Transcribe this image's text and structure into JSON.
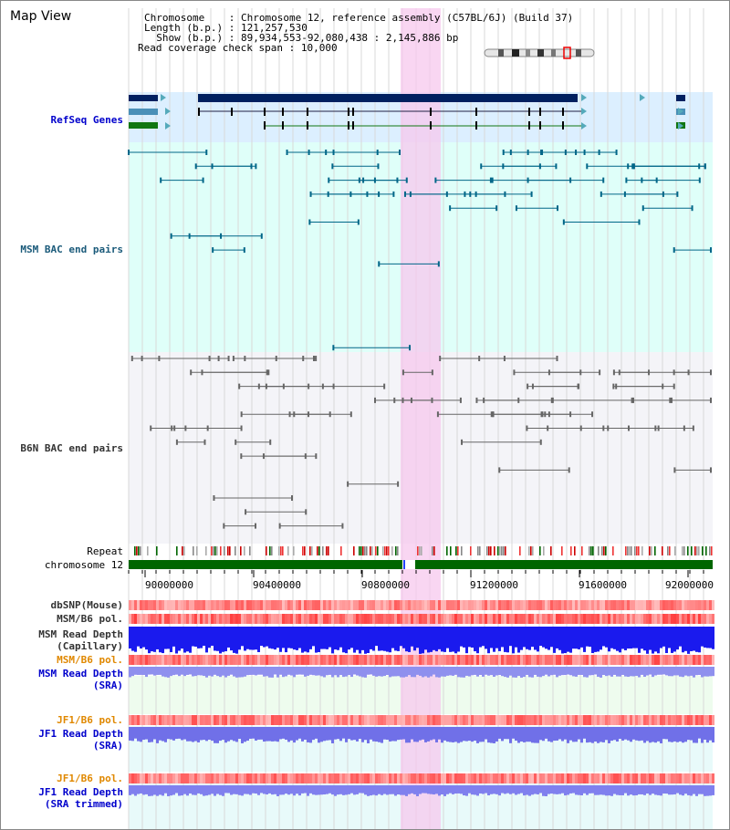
{
  "panel": {
    "title": "Map View"
  },
  "info": {
    "chromosome_label": "Chromosome",
    "chromosome_value": "Chromosome 12, reference assembly (C57BL/6J) (Build 37)",
    "length_label": "Length (b.p.)",
    "length_value": "121,257,530",
    "show_label": "Show (b.p.)",
    "show_value": "89,934,553-92,080,438 : 2,145,886 bp",
    "coverage_label": "Read coverage check span",
    "coverage_value": "10,000"
  },
  "tracks": {
    "refseq": "RefSeq Genes",
    "msm_bac": "MSM BAC end pairs",
    "b6n_bac": "B6N BAC end pairs",
    "repeat": "Repeat",
    "chromosome": "chromosome 12",
    "dbsnp": "dbSNP(Mouse)",
    "msm_b6_pol_1": "MSM/B6 pol.",
    "msm_depth_cap_1": "MSM Read Depth",
    "msm_depth_cap_2": "(Capillary)",
    "msm_b6_pol_2": "MSM/B6 pol.",
    "msm_depth_sra_1": "MSM Read Depth",
    "msm_depth_sra_2": "(SRA)",
    "jf1_b6_pol_1": "JF1/B6 pol.",
    "jf1_depth_sra_1": "JF1 Read Depth",
    "jf1_depth_sra_2": "(SRA)",
    "jf1_b6_pol_2": "JF1/B6 pol.",
    "jf1_depth_trim_1": "JF1 Read Depth",
    "jf1_depth_trim_2": "(SRA trimmed)"
  },
  "axis": {
    "ticks": [
      "90000000",
      "90400000",
      "90800000",
      "91200000",
      "91600000",
      "92000000"
    ]
  },
  "colors": {
    "refseq_bg": "#dcefff",
    "msm_bg": "#dffff9",
    "b6n_bg": "#f4f4f8",
    "highlight": "#f7c8ee",
    "chromosome_bar": "#006600",
    "refseq_dark": "#002060",
    "msm_pair": "#006688",
    "b6n_pair": "#666666"
  }
}
